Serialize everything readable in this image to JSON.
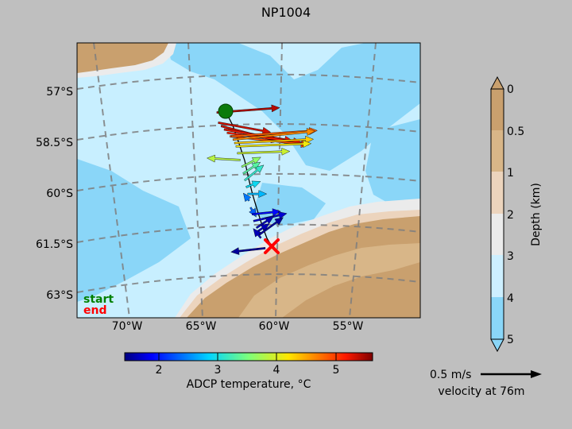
{
  "chart_data": {
    "type": "map",
    "title": "NP1004",
    "x_ticks": [
      "70°W",
      "65°W",
      "60°W",
      "55°W"
    ],
    "y_ticks": [
      "57°S",
      "58.5°S",
      "60°S",
      "61.5°S",
      "63°S"
    ],
    "track_labels": {
      "start": "start",
      "end": "end"
    },
    "colors": {
      "start": "#008000",
      "end": "#ff0000"
    },
    "depth_colorbar": {
      "label": "Depth (km)",
      "ticks": [
        "0",
        "0.5",
        "1",
        "2",
        "3",
        "4",
        "5"
      ],
      "colors": [
        "#c9a06e",
        "#d8b688",
        "#ecd4bd",
        "#ebebeb",
        "#cdefff",
        "#8ad6f8"
      ],
      "extend": "both"
    },
    "temperature_colorbar": {
      "label": "ADCP temperature, °C",
      "ticks": [
        "2",
        "3",
        "4",
        "5"
      ],
      "range": [
        1.4,
        5.6
      ]
    },
    "scale_arrow": {
      "label": "0.5 m/s",
      "caption": "velocity at 76m"
    },
    "vectors": [
      {
        "lon": -63.9,
        "lat": -57.6,
        "u": 0.66,
        "v": 0.05,
        "temp": 5.4
      },
      {
        "lon": -63.8,
        "lat": -57.9,
        "u": 0.55,
        "v": -0.1,
        "temp": 5.3
      },
      {
        "lon": -63.6,
        "lat": -58.0,
        "u": 0.61,
        "v": -0.16,
        "temp": 5.3
      },
      {
        "lon": -63.4,
        "lat": -58.1,
        "u": 0.72,
        "v": -0.12,
        "temp": 5.2
      },
      {
        "lon": -63.2,
        "lat": -58.2,
        "u": 0.78,
        "v": -0.1,
        "temp": 5.1
      },
      {
        "lon": -63.0,
        "lat": -58.3,
        "u": 0.83,
        "v": -0.09,
        "temp": 4.9
      },
      {
        "lon": -62.9,
        "lat": -58.3,
        "u": 0.9,
        "v": 0.06,
        "temp": 4.8
      },
      {
        "lon": -62.8,
        "lat": -58.4,
        "u": 0.86,
        "v": 0.09,
        "temp": 4.6
      },
      {
        "lon": -62.7,
        "lat": -58.5,
        "u": 0.83,
        "v": 0.04,
        "temp": 4.3
      },
      {
        "lon": -62.6,
        "lat": -58.6,
        "u": 0.79,
        "v": 0.03,
        "temp": 4.1
      },
      {
        "lon": -62.5,
        "lat": -58.8,
        "u": 0.55,
        "v": 0.02,
        "temp": 3.9
      },
      {
        "lon": -62.3,
        "lat": -59.0,
        "u": -0.35,
        "v": 0.02,
        "temp": 3.8
      },
      {
        "lon": -62.2,
        "lat": -59.2,
        "u": 0.2,
        "v": 0.1,
        "temp": 3.6
      },
      {
        "lon": -62.1,
        "lat": -59.4,
        "u": 0.18,
        "v": 0.12,
        "temp": 3.3
      },
      {
        "lon": -62.0,
        "lat": -59.6,
        "u": 0.2,
        "v": 0.16,
        "temp": 3.1
      },
      {
        "lon": -61.9,
        "lat": -59.8,
        "u": 0.15,
        "v": 0.06,
        "temp": 2.9
      },
      {
        "lon": -61.8,
        "lat": -60.0,
        "u": 0.2,
        "v": 0.0,
        "temp": 2.7
      },
      {
        "lon": -61.7,
        "lat": -60.2,
        "u": -0.06,
        "v": 0.08,
        "temp": 2.4
      },
      {
        "lon": -61.6,
        "lat": -60.4,
        "u": 0.06,
        "v": -0.1,
        "temp": 2.3
      },
      {
        "lon": -61.5,
        "lat": -60.6,
        "u": 0.3,
        "v": 0.03,
        "temp": 1.9
      },
      {
        "lon": -61.4,
        "lat": -60.8,
        "u": 0.35,
        "v": 0.08,
        "temp": 1.7
      },
      {
        "lon": -61.2,
        "lat": -61.0,
        "u": 0.18,
        "v": 0.12,
        "temp": 1.6
      },
      {
        "lon": -61.1,
        "lat": -61.1,
        "u": 0.12,
        "v": 0.08,
        "temp": 1.6
      },
      {
        "lon": -61.0,
        "lat": -61.2,
        "u": 0.25,
        "v": 0.18,
        "temp": 1.5
      },
      {
        "lon": -60.9,
        "lat": -61.3,
        "u": -0.08,
        "v": 0.1,
        "temp": 1.6
      },
      {
        "lon": -60.6,
        "lat": -61.6,
        "u": -0.36,
        "v": -0.04,
        "temp": 1.5
      }
    ]
  }
}
